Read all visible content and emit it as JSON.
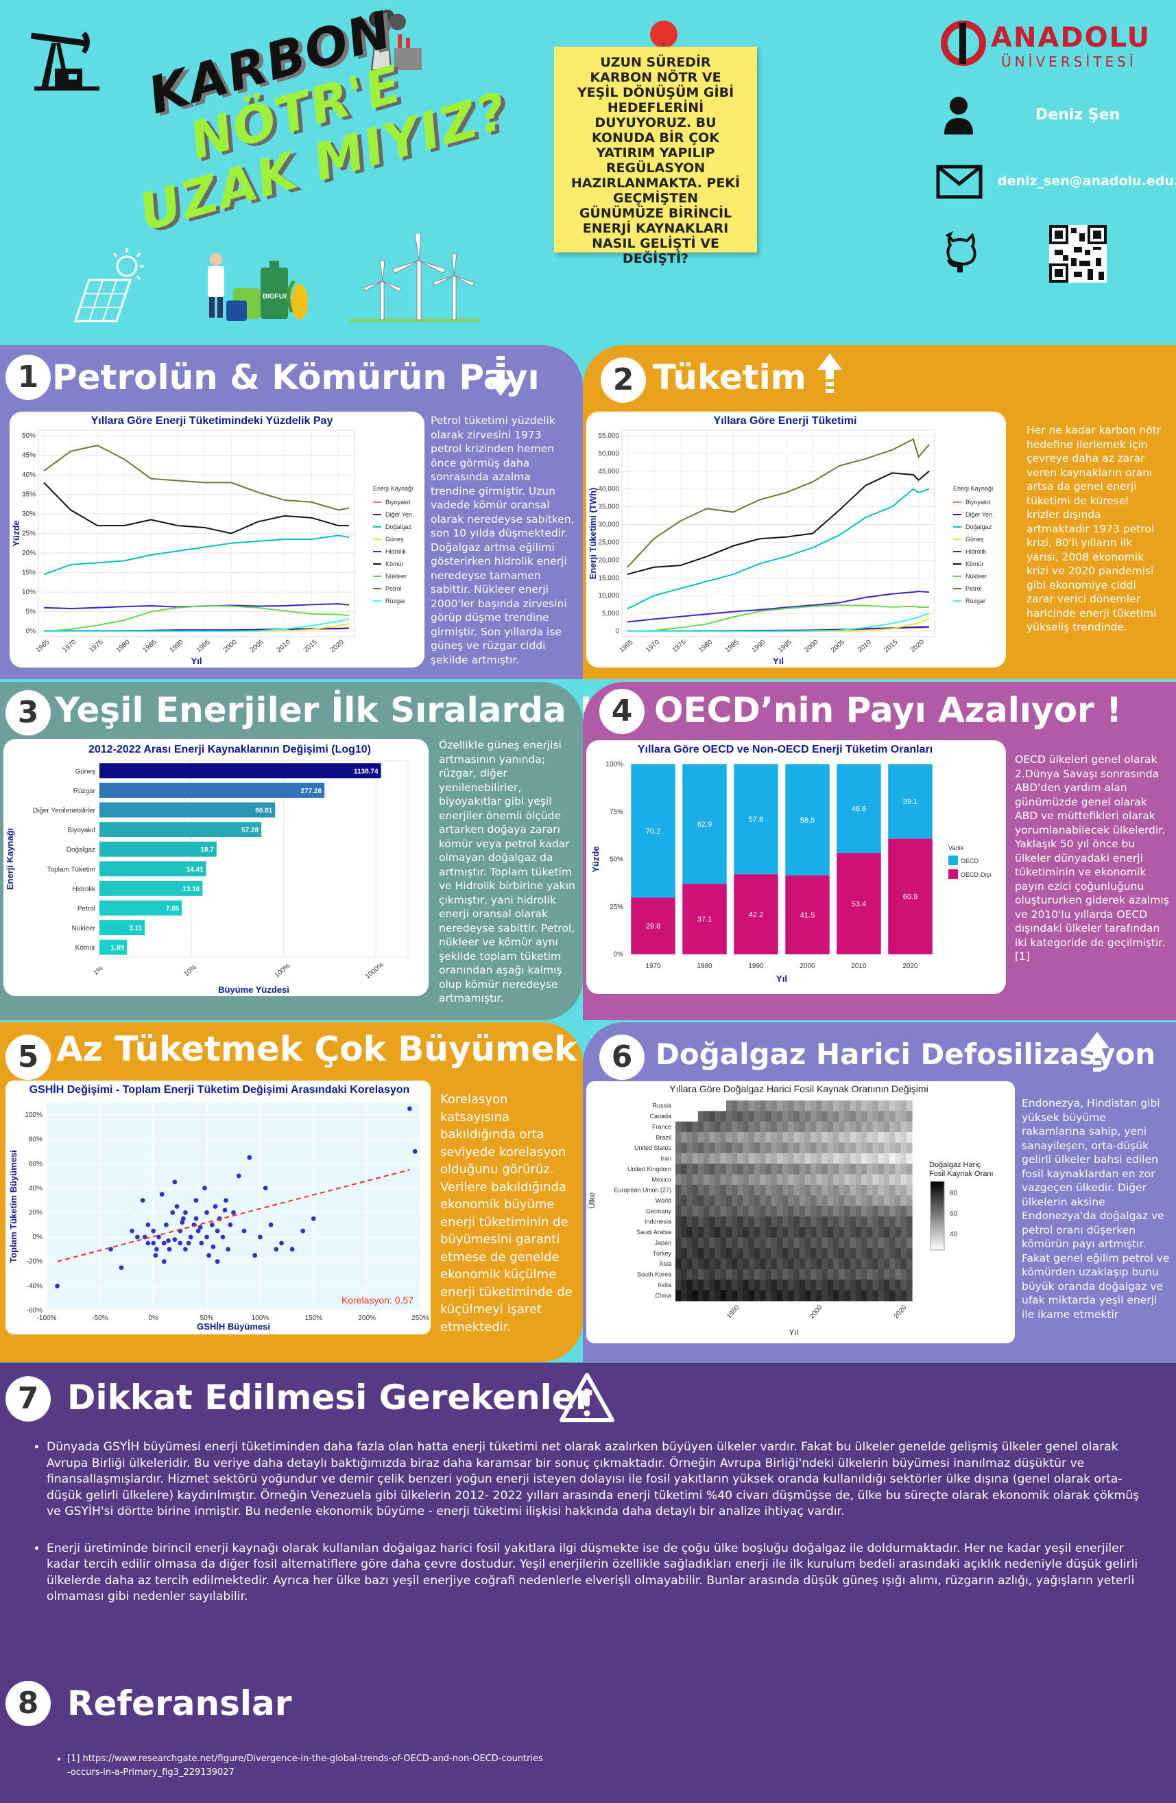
{
  "header": {
    "title_lines": [
      "KARBON",
      "NÖTR'E",
      "UZAK MIYIZ?"
    ],
    "note": "UZUN SÜREDİR KARBON NÖTR VE YEŞİL DÖNÜŞÜM GİBİ HEDEFLERİNİ DUYUYORUZ. BU KONUDA BİR ÇOK YATIRIM YAPILIP REGÜLASYON HAZIRLANMAKTA. PEKİ GEÇMİŞTEN GÜNÜMÜZE BİRİNCİL ENERJİ KAYNAKLARI NASIL GELİŞTİ VE DEĞİŞTİ?",
    "university": "ANADOLU",
    "university_sub": "ÜNİVERSİTESİ",
    "author": "Deniz Şen",
    "email": "deniz_sen@anadolu.edu.tr",
    "biofuel_label": "BIOFUEL"
  },
  "sections": [
    {
      "num": "1",
      "title": "Petrolün & Kömürün Payı",
      "text": "Petrol tüketimi yüzdelik olarak zirvesini 1973 petrol krizinden hemen önce görmüş daha sonrasında azalma trendine girmiştir. Uzun vadede kömür oransal olarak neredeyse sabitken, son 10 yılda düşmektedir. Doğalgaz artma eğilimi gösterirken hidrolik enerji neredeyse tamamen sabittir. Nükleer enerji 2000'ler başında zirvesini görüp düşme trendine girmiştir. Son yıllarda ise güneş ve rüzgar ciddi şekilde artmıştır."
    },
    {
      "num": "2",
      "title": "Tüketim",
      "text": "Her ne kadar karbon nötr hedefine ilerlemek için çevreye daha az zarar veren kaynakların oranı artsa da genel enerji tüketimi de küresel krizler dışında artmaktadır 1973 petrol krizi, 80'li yılların ilk yarısı, 2008 ekonomik krizi ve 2020 pandemisi gibi ekonomiye ciddi zarar verici dönemler haricinde enerji tüketimi yükseliş trendinde."
    },
    {
      "num": "3",
      "title": "Yeşil Enerjiler İlk Sıralarda !",
      "text": "Özellikle güneş enerjisi artmasının yanında; rüzgar, diğer yenilenebilirler, biyoyakıtlar gibi yeşil enerjiler önemli ölçüde artarken doğaya zararı kömür veya petrol kadar olmayan doğalgaz da artmıştır. Toplam tüketim ve Hidrolik birbirine yakın çıkmıştır, yani hidrolik enerji oransal olarak neredeyse sabittir. Petrol, nükleer ve kömür aynı şekilde toplam tüketim oranından aşağı kalmış olup kömür neredeyse artmamıştır."
    },
    {
      "num": "4",
      "title": "OECD’nin Payı Azalıyor !",
      "text": "OECD ülkeleri genel olarak 2.Dünya Savaşı sonrasında ABD'den yardım alan günümüzde genel olarak ABD ve müttefikleri olarak yorumlanabilecek ülkelerdir. Yaklaşık 50 yıl önce bu ülkeler dünyadaki enerji tüketiminin ve ekonomik payın ezici çoğunluğunu oluştururken giderek azalmış ve 2010'lu yıllarda OECD dışındaki ülkeler tarafından iki kategoride de geçilmiştir.[1]"
    },
    {
      "num": "5",
      "title": "Az Tüketmek Çok Büyümek ?",
      "text": "Korelasyon katsayısına bakıldığında orta seviyede korelasyon olduğunu görürüz. Verilere bakıldığında ekonomik büyüme enerji tüketiminin de büyümesini garanti etmese de genelde ekonomik küçülme enerji tüketiminde de küçülmeyi işaret etmektedir."
    },
    {
      "num": "6",
      "title": "Doğalgaz Harici Defosilizasyon",
      "text": "Endonezya, Hindistan gibi yüksek büyüme rakamlarına sahip, yeni sanayileşen, orta-düşük gelirli ülkeler bahsi edilen fosil kaynaklardan en zor vazgeçen ülkedir. Diğer ülkelerin aksine Endonezya'da doğalgaz ve petrol oranı düşerken kömürün payı artmıştır. Fakat genel eğilim petrol ve kömürden uzaklaşıp bunu büyük oranda doğalgaz ve ufak miktarda yeşil enerji ile ikame etmektir"
    },
    {
      "num": "7",
      "title": "Dikkat Edilmesi Gerekenler",
      "bullets": [
        "Dünyada GSYİH büyümesi enerji tüketiminden daha fazla olan hatta enerji tüketimi net olarak azalırken büyüyen ülkeler vardır. Fakat bu ülkeler genelde gelişmiş ülkeler genel olarak Avrupa Birliği ülkeleridir. Bu veriye daha detaylı baktığımızda biraz daha karamsar bir sonuç çıkmaktadır. Örneğin Avrupa Birliği'ndeki ülkelerin büyümesi inanılmaz düşüktür ve finansallaşmışlardır. Hizmet sektörü yoğundur ve demir çelik benzeri yoğun enerji isteyen dolayısı ile fosil yakıtların yüksek oranda kullanıldığı sektörler ülke dışına (genel olarak orta-düşük gelirli ülkelere) kaydırılmıştır. Örneğin Venezuela gibi ülkelerin 2012- 2022 yılları arasında enerji tüketimi %40 civarı düşmüşse de, ülke bu süreçte olarak ekonomik olarak çökmüş ve GSYİH'si dörtte birine inmiştir.  Bu nedenle ekonomik büyüme - enerji tüketimi ilişkisi hakkında daha detaylı bir analize ihtiyaç vardır.",
        "Enerji üretiminde birincil enerji kaynağı olarak kullanılan doğalgaz harici fosil yakıtlara ilgi düşmekte ise de çoğu ülke boşluğu doğalgaz ile doldurmaktadır. Her ne kadar yeşil enerjiler kadar tercih edilir olmasa da diğer fosil alternatiflere göre daha çevre dostudur. Yeşil enerjilerin özellikle sağladıkları enerji ile ilk kurulum bedeli arasındaki açıklık nedeniyle düşük gelirli ülkelerde daha az tercih edilmektedir. Ayrıca her ülke bazı yeşil enerjiye coğrafi nedenlerle elverişli olmayabilir. Bunlar arasında düşük güneş ışığı alımı, rüzgarın azlığı, yağışların yeterli olmaması gibi nedenler sayılabilir."
      ]
    },
    {
      "num": "8",
      "title": "Referanslar",
      "refs": [
        "[1] https://www.researchgate.net/figure/Divergence-in-the-global-trends-of-OECD-and-non-OECD-countries-occurs-in-a-Primary_fig3_229139027"
      ]
    }
  ],
  "chart_data": [
    {
      "type": "line",
      "title": "Yıllara Göre Enerji Tüketimindeki Yüzdelik Pay",
      "xlabel": "Yıl",
      "ylabel": "Yüzde",
      "x": [
        1965,
        1970,
        1975,
        1980,
        1985,
        1990,
        1995,
        2000,
        2005,
        2010,
        2015,
        2020,
        2022
      ],
      "yticks": [
        "0%",
        "5%",
        "10%",
        "15%",
        "20%",
        "25%",
        "30%",
        "35%",
        "40%",
        "45%",
        "50%"
      ],
      "ylim": [
        0,
        50
      ],
      "legend_title": "Enerji Kaynağı",
      "series": [
        {
          "name": "Biyoyakıt",
          "color": "#f8766d",
          "values": [
            0,
            0,
            0,
            0.1,
            0.2,
            0.2,
            0.2,
            0.2,
            0.3,
            0.5,
            0.6,
            0.6,
            0.7
          ]
        },
        {
          "name": "Diğer Yen.",
          "color": "#2b1b9e",
          "values": [
            0.1,
            0.1,
            0.1,
            0.1,
            0.2,
            0.3,
            0.3,
            0.3,
            0.4,
            0.5,
            0.6,
            0.7,
            0.8
          ]
        },
        {
          "name": "Doğalgaz",
          "color": "#00c0c0",
          "values": [
            14.5,
            17,
            17.5,
            18,
            19.5,
            20.5,
            21.5,
            22.5,
            23,
            23.5,
            23.5,
            24.5,
            24
          ]
        },
        {
          "name": "Güneş",
          "color": "#e8e83a",
          "values": [
            0,
            0,
            0,
            0,
            0,
            0,
            0,
            0,
            0,
            0.1,
            0.4,
            1.4,
            1.9
          ]
        },
        {
          "name": "Hidrolik",
          "color": "#3b20d8",
          "values": [
            6,
            5.8,
            6,
            6.3,
            6.5,
            6.2,
            6.4,
            6.6,
            6.4,
            6.5,
            6.8,
            7.0,
            6.7
          ]
        },
        {
          "name": "Kömür",
          "color": "#111111",
          "values": [
            38,
            31,
            27,
            27,
            28.5,
            27,
            26.5,
            25,
            28,
            29.5,
            29,
            27,
            27
          ]
        },
        {
          "name": "Nükleer",
          "color": "#6ad64a",
          "values": [
            0,
            0.5,
            1.5,
            2.8,
            5,
            6,
            6.5,
            6.4,
            6,
            5.2,
            4.4,
            4.3,
            4
          ]
        },
        {
          "name": "Petrol",
          "color": "#667a35",
          "values": [
            41,
            46,
            47.5,
            44,
            39,
            38.5,
            38,
            38,
            35.5,
            33.5,
            33,
            31,
            31.5
          ]
        },
        {
          "name": "Rüzgar",
          "color": "#40f0f0",
          "values": [
            0,
            0,
            0,
            0,
            0,
            0,
            0,
            0,
            0.1,
            0.5,
            1.4,
            2.5,
            3.2
          ]
        }
      ]
    },
    {
      "type": "line",
      "title": "Yıllara Göre Enerji Tüketimi",
      "xlabel": "Yıl",
      "ylabel": "Enerji Tüketimi (TWh)",
      "x": [
        1965,
        1970,
        1975,
        1980,
        1985,
        1990,
        1995,
        2000,
        2005,
        2010,
        2015,
        2019,
        2020,
        2022
      ],
      "yticks": [
        "0",
        "5,000",
        "10,000",
        "15,000",
        "20,000",
        "25,000",
        "30,000",
        "35,000",
        "40,000",
        "45,000",
        "50,000",
        "55,000"
      ],
      "ylim": [
        0,
        55000
      ],
      "legend_title": "Enerji Kaynağı",
      "series": [
        {
          "name": "Biyoyakıt",
          "color": "#f8766d",
          "values": [
            0,
            0,
            0,
            50,
            100,
            100,
            150,
            150,
            250,
            600,
            800,
            1000,
            950,
            1100
          ]
        },
        {
          "name": "Diğer Yen.",
          "color": "#2b1b9e",
          "values": [
            50,
            60,
            80,
            100,
            150,
            200,
            250,
            300,
            450,
            700,
            900,
            1100,
            1150,
            1200
          ]
        },
        {
          "name": "Doğalgaz",
          "color": "#00c0c0",
          "values": [
            6300,
            10000,
            12000,
            14000,
            16000,
            19000,
            21000,
            23500,
            27000,
            32000,
            35000,
            40000,
            39000,
            40000
          ]
        },
        {
          "name": "Güneş",
          "color": "#e8e83a",
          "values": [
            0,
            0,
            0,
            0,
            0,
            0,
            0,
            0,
            0,
            100,
            700,
            2000,
            2300,
            3500
          ]
        },
        {
          "name": "Hidrolik",
          "color": "#3b20d8",
          "values": [
            2600,
            3400,
            4100,
            4800,
            5500,
            6000,
            6700,
            7300,
            8000,
            9500,
            10500,
            11000,
            11200,
            11000
          ]
        },
        {
          "name": "Kömür",
          "color": "#111111",
          "values": [
            16000,
            18000,
            18500,
            21000,
            24000,
            26000,
            26500,
            27500,
            34000,
            41000,
            44500,
            44000,
            42500,
            45000
          ]
        },
        {
          "name": "Nükleer",
          "color": "#6ad64a",
          "values": [
            0,
            200,
            1000,
            2000,
            4000,
            5600,
            6400,
            7000,
            7300,
            7200,
            6800,
            7000,
            6800,
            6700
          ]
        },
        {
          "name": "Petrol",
          "color": "#667a35",
          "values": [
            18000,
            26000,
            31000,
            34500,
            33500,
            37000,
            39000,
            42000,
            46500,
            48500,
            51000,
            54000,
            49000,
            52500
          ]
        },
        {
          "name": "Rüzgar",
          "color": "#40f0f0",
          "values": [
            0,
            0,
            0,
            0,
            0,
            0,
            0,
            100,
            250,
            1000,
            2200,
            3500,
            4000,
            5000
          ]
        }
      ]
    },
    {
      "type": "bar",
      "title": "2012-2022 Arası Enerji Kaynaklarının Değişimi (Log10)",
      "xlabel": "Büyüme Yüzdesi",
      "ylabel": "Enerji Kaynağı",
      "xticks": [
        "1%",
        "10%",
        "100%",
        "1000%"
      ],
      "categories": [
        "Güneş",
        "Rüzgar",
        "Diğer Yenilenebilirler",
        "Biyoyakıt",
        "Doğalgaz",
        "Toplam Tüketim",
        "Hidrolik",
        "Petrol",
        "Nükleer",
        "Kömür"
      ],
      "values": [
        1138.74,
        277.26,
        80.81,
        57.28,
        18.7,
        14.41,
        13.16,
        7.85,
        3.11,
        1.89
      ],
      "value_labels": [
        "1138.74",
        "277.26",
        "80.81",
        "57.28",
        "18.7",
        "14.41",
        "13.16",
        "7.85",
        "3.11",
        "1.89"
      ],
      "colors": [
        "#0b0b86",
        "#2d74b8",
        "#2a96b4",
        "#23aab4",
        "#20b8bd",
        "#1fc2c0",
        "#1ec6c4",
        "#1ccac6",
        "#1bcdc8",
        "#1bd0ca"
      ]
    },
    {
      "type": "bar",
      "title": "Yıllara Göre OECD ve Non-OECD Enerji Tüketim Oranları",
      "xlabel": "Yıl",
      "ylabel": "Yüzde",
      "categories": [
        "1970",
        "1980",
        "1990",
        "2000",
        "2010",
        "2020"
      ],
      "yticks": [
        "0%",
        "25%",
        "50%",
        "75%",
        "100%"
      ],
      "series": [
        {
          "name": "OECD",
          "color": "#1aaee9",
          "values": [
            70.2,
            62.9,
            57.8,
            58.5,
            46.6,
            39.1
          ],
          "labels": [
            "70.2",
            "62.9",
            "57.8",
            "58.5",
            "46.6",
            "39.1"
          ]
        },
        {
          "name": "OECD-Dışı",
          "color": "#cc1177",
          "values": [
            29.8,
            37.1,
            42.2,
            41.5,
            53.4,
            60.9
          ],
          "labels": [
            "29.8",
            "37.1",
            "42.2",
            "41.5",
            "53.4",
            "60.9"
          ]
        }
      ],
      "legend_title": "Varlık"
    },
    {
      "type": "scatter",
      "title": "GSHİH Değişimi - Toplam Enerji Tüketim Değişimi Arasındaki Korelasyon",
      "xlabel": "GSHİH Büyümesi",
      "ylabel": "Toplam Tüketim Büyümesi",
      "xticks": [
        "-100%",
        "-50%",
        "0%",
        "50%",
        "100%",
        "150%",
        "200%",
        "250%"
      ],
      "yticks": [
        "-60%",
        "-40%",
        "-20%",
        "0%",
        "20%",
        "40%",
        "60%",
        "80%",
        "100%"
      ],
      "xlim": [
        -100,
        250
      ],
      "ylim": [
        -60,
        110
      ],
      "annotation": "Korelasyon: 0.57",
      "x": [
        -90,
        -40,
        -30,
        -15,
        -10,
        -5,
        -5,
        0,
        0,
        2,
        5,
        8,
        10,
        10,
        12,
        15,
        18,
        20,
        20,
        22,
        25,
        25,
        28,
        30,
        30,
        35,
        38,
        40,
        40,
        42,
        45,
        48,
        50,
        50,
        52,
        55,
        58,
        60,
        60,
        62,
        65,
        68,
        70,
        72,
        75,
        80,
        85,
        90,
        95,
        100,
        105,
        110,
        115,
        120,
        130,
        140,
        150,
        240,
        245,
        -20,
        -8,
        3,
        14,
        27,
        33,
        44,
        56,
        67
      ],
      "y": [
        -40,
        -10,
        -25,
        0,
        30,
        -5,
        10,
        -5,
        5,
        -15,
        0,
        35,
        -5,
        -20,
        10,
        -10,
        20,
        -2,
        45,
        25,
        5,
        -5,
        15,
        20,
        -10,
        0,
        10,
        15,
        30,
        5,
        -5,
        40,
        0,
        20,
        -15,
        10,
        25,
        -20,
        5,
        15,
        0,
        30,
        -10,
        10,
        20,
        50,
        5,
        65,
        -15,
        0,
        40,
        10,
        -10,
        -5,
        -10,
        5,
        15,
        105,
        70,
        5,
        0,
        -10,
        -3,
        12,
        -5,
        8,
        -8,
        22
      ]
    },
    {
      "type": "heatmap",
      "title": "Yıllara Göre Doğalgaz Harici Fosil Kaynak Oranının Değişimi",
      "xlabel": "Yıl",
      "ylabel": "Ülke",
      "xticks": [
        "1980",
        "2000",
        "2020"
      ],
      "categories": [
        "Russia",
        "Canada",
        "France",
        "Brazil",
        "United States",
        "Iran",
        "United Kingdom",
        "Mexico",
        "European Union (27)",
        "World",
        "Germany",
        "Indonesia",
        "Saudi Arabia",
        "Japan",
        "Turkey",
        "Asia",
        "South Korea",
        "India",
        "China"
      ],
      "legend_title": "Doğalgaz Hariç Fosil Kaynak Oranı",
      "legend_ticks": [
        "80",
        "60",
        "40"
      ]
    }
  ]
}
